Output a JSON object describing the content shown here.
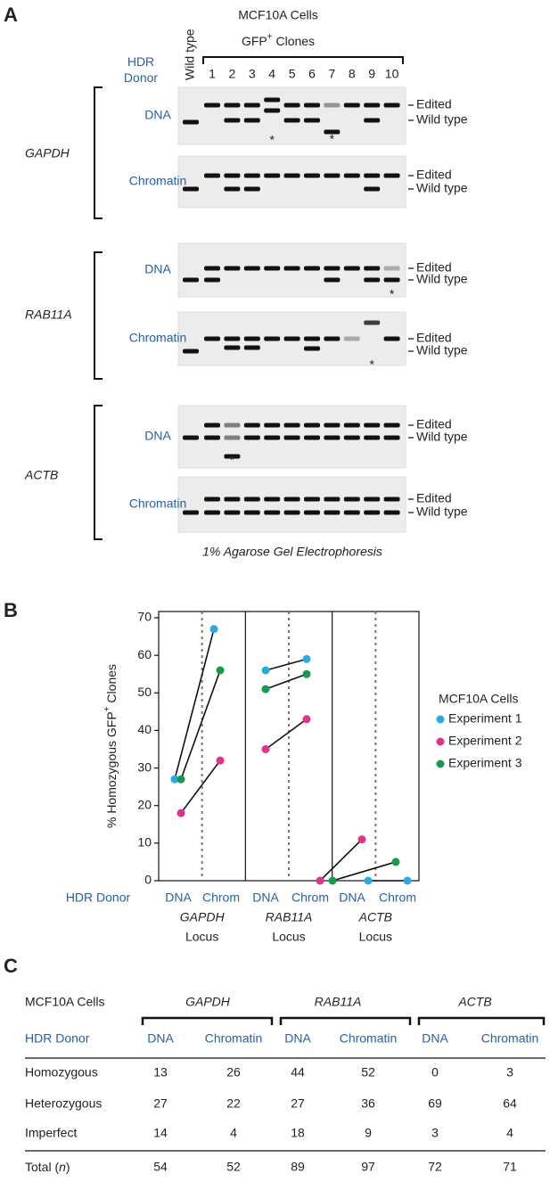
{
  "panel_a": {
    "label": "A",
    "cells": "MCF10A Cells",
    "clones": [
      "GFP",
      "+",
      " Clones"
    ],
    "wild_type_lane": "Wild type",
    "donor_header": [
      "HDR",
      "Donor"
    ],
    "lanes": [
      "1",
      "2",
      "3",
      "4",
      "5",
      "6",
      "7",
      "8",
      "9",
      "10"
    ],
    "loci": [
      {
        "name": "GAPDH",
        "gels": [
          {
            "donor": "DNA",
            "asterisks": [
              "*",
              "*"
            ]
          },
          {
            "donor": "Chromatin",
            "asterisks": []
          }
        ]
      },
      {
        "name": "RAB11A",
        "gels": [
          {
            "donor": "DNA",
            "asterisks": [
              "*"
            ]
          },
          {
            "donor": "Chromatin",
            "asterisks": [
              "*"
            ]
          }
        ]
      },
      {
        "name": "ACTB",
        "gels": [
          {
            "donor": "DNA",
            "asterisks": [
              "*"
            ]
          },
          {
            "donor": "Chromatin",
            "asterisks": []
          }
        ]
      }
    ],
    "band_labels": [
      "Edited",
      "Wild type"
    ],
    "footer": "1% Agarose Gel Electrophoresis"
  },
  "chart_data": {
    "type": "line",
    "label": "B",
    "ylabel": [
      "% Homozygous GFP",
      "+",
      " Clones"
    ],
    "xlabel": "HDR Donor",
    "categories": [
      "DNA",
      "Chrom",
      "DNA",
      "Chrom",
      "DNA",
      "Chrom"
    ],
    "groups": [
      {
        "name": "GAPDH",
        "suffix": "Locus"
      },
      {
        "name": "RAB11A",
        "suffix": "Locus"
      },
      {
        "name": "ACTB",
        "suffix": "Locus"
      }
    ],
    "series": [
      {
        "name": "Experiment 1",
        "color": "#29abe2",
        "values": [
          27,
          67,
          56,
          59,
          0,
          0
        ]
      },
      {
        "name": "Experiment 2",
        "color": "#e0338a",
        "values": [
          18,
          32,
          35,
          43,
          0,
          11
        ]
      },
      {
        "name": "Experiment 3",
        "color": "#1a9850",
        "values": [
          27,
          56,
          51,
          55,
          0,
          5
        ]
      }
    ],
    "ylim": [
      0,
      70
    ],
    "yticks": [
      0,
      10,
      20,
      30,
      40,
      50,
      60,
      70
    ],
    "legend_title": "MCF10A Cells",
    "legend": "right"
  },
  "table": {
    "label": "C",
    "header": [
      "MCF10A Cells",
      "GAPDH",
      "RAB11A",
      "ACTB"
    ],
    "subheader": [
      "HDR Donor",
      "DNA",
      "Chromatin",
      "DNA",
      "Chromatin",
      "DNA",
      "Chromatin"
    ],
    "rows": [
      [
        "Homozygous",
        13,
        26,
        44,
        52,
        0,
        3
      ],
      [
        "Heterozygous",
        27,
        22,
        27,
        36,
        69,
        64
      ],
      [
        "Imperfect",
        14,
        4,
        18,
        9,
        3,
        4
      ]
    ],
    "total": [
      [
        "Total (",
        "n",
        ")"
      ],
      54,
      52,
      89,
      97,
      72,
      71
    ]
  }
}
